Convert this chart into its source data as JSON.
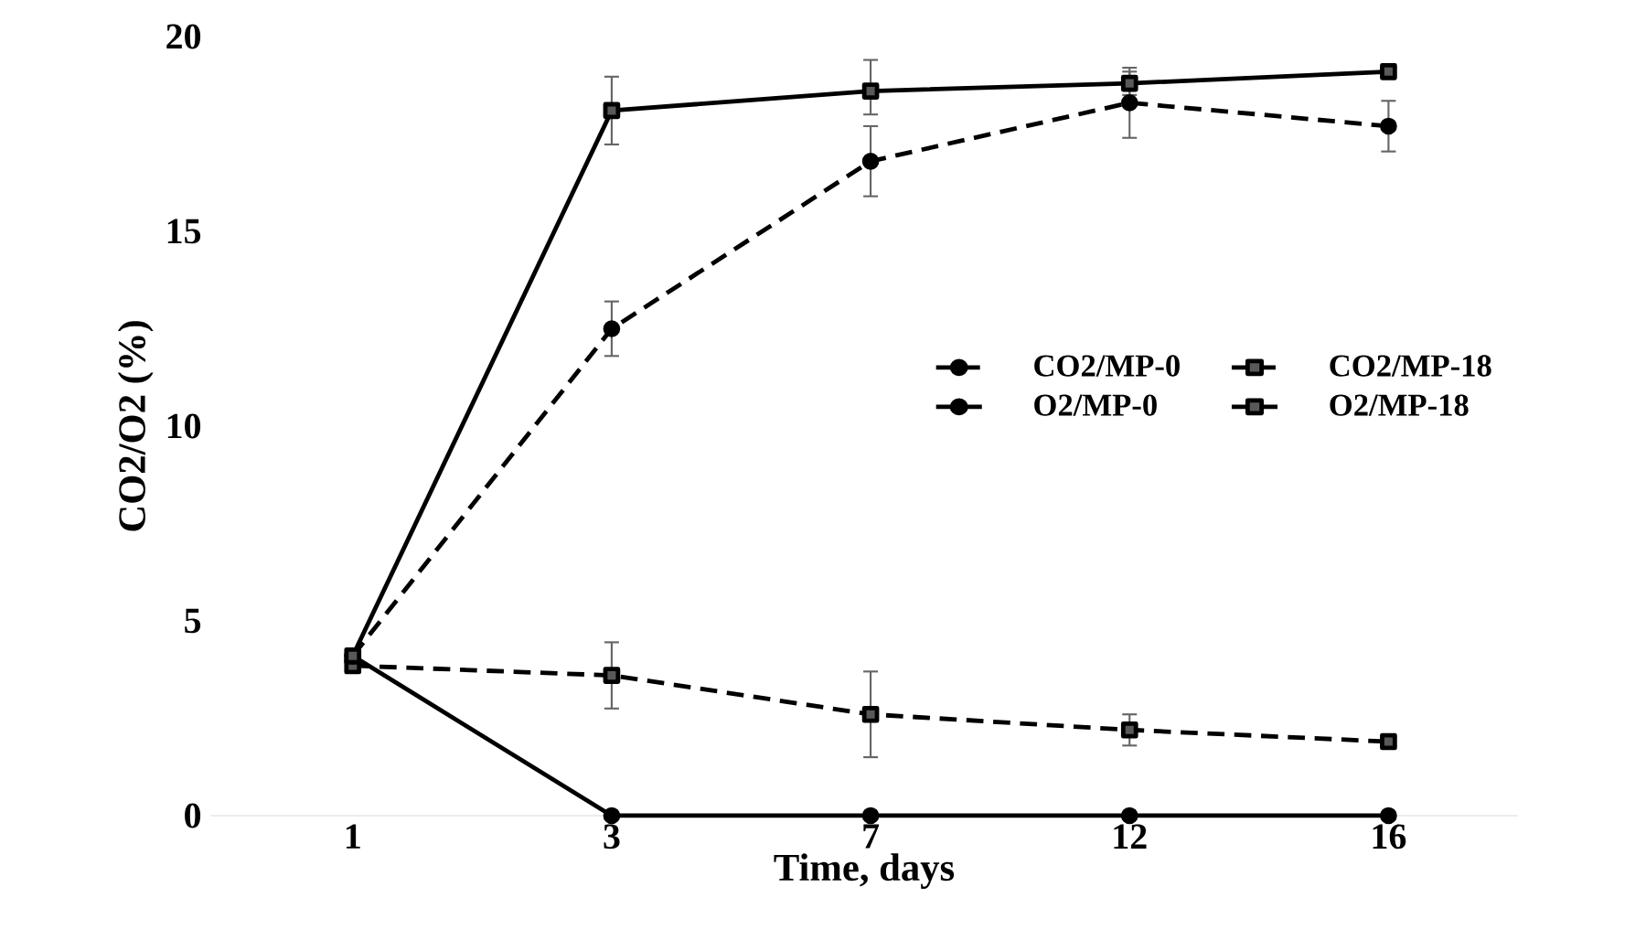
{
  "chart_data": {
    "type": "line",
    "xlabel": "Time, days",
    "ylabel": "CO2/O2 (%)",
    "categories": [
      "1",
      "3",
      "7",
      "12",
      "16"
    ],
    "ylim": [
      0,
      20
    ],
    "yticks": [
      0,
      5,
      10,
      15,
      20
    ],
    "grid": false,
    "legend": "right",
    "series": [
      {
        "name": "CO2/MP-0",
        "color": "#000000",
        "marker": "circle",
        "line_style": "dashed",
        "values": [
          4.1,
          12.5,
          16.8,
          18.3,
          17.7
        ],
        "errors": [
          null,
          0.7,
          0.9,
          0.9,
          0.65
        ]
      },
      {
        "name": "CO2/MP-18",
        "color": "#000000",
        "marker": "square",
        "line_style": "dashed",
        "values": [
          3.85,
          3.6,
          2.6,
          2.2,
          1.9
        ],
        "errors": [
          null,
          0.85,
          1.1,
          0.4,
          null
        ]
      },
      {
        "name": "O2/MP-0",
        "color": "#000000",
        "marker": "circle",
        "line_style": "solid",
        "values": [
          4.1,
          0,
          0,
          0,
          0
        ]
      },
      {
        "name": "O2/MP-18",
        "color": "#000000",
        "marker": "square",
        "line_style": "solid",
        "values": [
          4.1,
          18.1,
          18.6,
          18.8,
          19.1
        ],
        "errors": [
          null,
          0.87,
          [
            18.0,
            19.4
          ],
          0.3,
          null
        ]
      }
    ]
  }
}
